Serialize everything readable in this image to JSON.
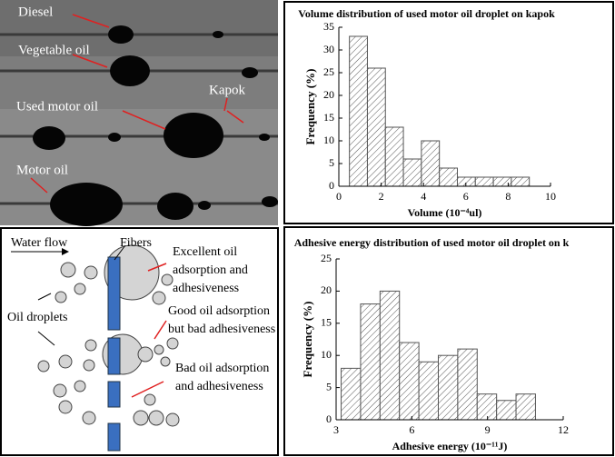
{
  "photo": {
    "labels": [
      "Diesel",
      "Vegetable oil",
      "Used motor oil",
      "Kapok",
      "Motor oil"
    ]
  },
  "diagram": {
    "water_flow": "Water flow",
    "fibers": "Fibers",
    "excellent": [
      "Excellent oil",
      "adsorption and",
      "adhesiveness"
    ],
    "good": [
      "Good oil adsorption",
      "but bad adhesiveness"
    ],
    "oil_droplets": "Oil droplets",
    "bad": [
      "Bad oil adsorption",
      "and adhesiveness"
    ]
  },
  "chart_data": [
    {
      "type": "histogram",
      "title": "Volume distribution of used motor oil droplet on kapok",
      "x_label": "Volume (10⁻⁴ul)",
      "y_label": "Frequency (%)",
      "bins": [
        0.5,
        1.35,
        2.2,
        3.05,
        3.9,
        4.75,
        5.6,
        6.45,
        7.3,
        8.15,
        9.0
      ],
      "values": [
        33,
        26,
        13,
        6,
        10,
        4,
        2,
        2,
        2,
        2
      ],
      "xlim": [
        0,
        10
      ],
      "xticks": [
        0,
        2,
        4,
        6,
        8,
        10
      ],
      "ylim": [
        0,
        35
      ],
      "yticks": [
        0,
        5,
        10,
        15,
        20,
        25,
        30,
        35
      ],
      "grid": false,
      "color": "#555555"
    },
    {
      "type": "histogram",
      "title": "Adhesive energy distribution of used motor oil droplet on k",
      "x_label": "Adhesive energy (10⁻¹¹J)",
      "y_label": "Frequency (%)",
      "bins": [
        3.2,
        3.97,
        4.74,
        5.51,
        6.28,
        7.05,
        7.82,
        8.59,
        9.36,
        10.13,
        10.9
      ],
      "values": [
        8,
        18,
        20,
        12,
        9,
        10,
        11,
        4,
        3,
        4
      ],
      "xlim": [
        3,
        12
      ],
      "xticks": [
        3,
        6,
        9,
        12
      ],
      "ylim": [
        0,
        25
      ],
      "yticks": [
        0,
        5,
        10,
        15,
        20,
        25
      ],
      "grid": false,
      "color": "#555555"
    }
  ]
}
